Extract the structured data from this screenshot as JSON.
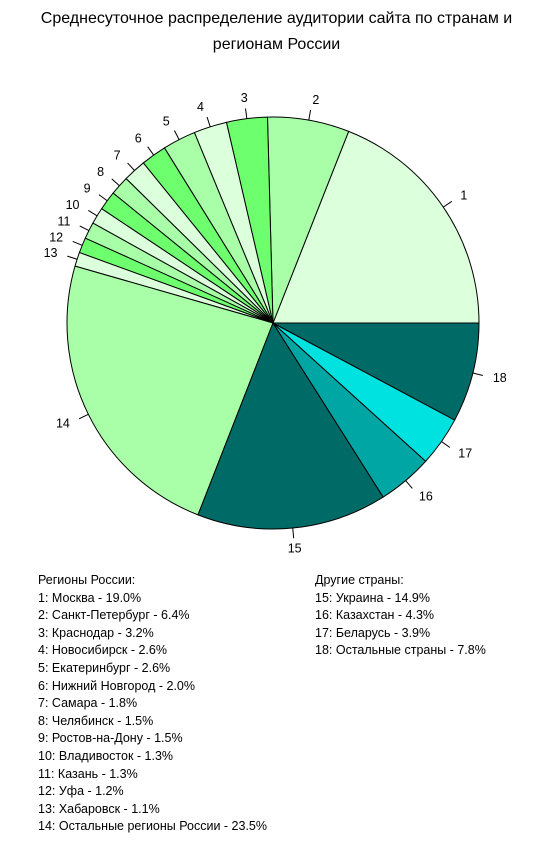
{
  "title": {
    "line1": "Среднесуточное распределение аудитории сайта по странам и",
    "line2": "регионам России"
  },
  "chart_data": {
    "type": "pie",
    "slices": [
      {
        "label": "1",
        "value": 19.0,
        "color": "#dcffdc"
      },
      {
        "label": "2",
        "value": 6.4,
        "color": "#a8ffa8"
      },
      {
        "label": "3",
        "value": 3.2,
        "color": "#6eff6e"
      },
      {
        "label": "4",
        "value": 2.6,
        "color": "#dcffdc"
      },
      {
        "label": "5",
        "value": 2.6,
        "color": "#a8ffa8"
      },
      {
        "label": "6",
        "value": 2.0,
        "color": "#6eff6e"
      },
      {
        "label": "7",
        "value": 1.8,
        "color": "#dcffdc"
      },
      {
        "label": "8",
        "value": 1.5,
        "color": "#a8ffa8"
      },
      {
        "label": "9",
        "value": 1.5,
        "color": "#6eff6e"
      },
      {
        "label": "10",
        "value": 1.3,
        "color": "#dcffdc"
      },
      {
        "label": "11",
        "value": 1.3,
        "color": "#a8ffa8"
      },
      {
        "label": "12",
        "value": 1.2,
        "color": "#6eff6e"
      },
      {
        "label": "13",
        "value": 1.1,
        "color": "#dcffdc"
      },
      {
        "label": "14",
        "value": 23.5,
        "color": "#a8ffa8"
      },
      {
        "label": "15",
        "value": 14.9,
        "color": "#006b66"
      },
      {
        "label": "16",
        "value": 4.3,
        "color": "#00a6a3"
      },
      {
        "label": "17",
        "value": 3.9,
        "color": "#00e2e0"
      },
      {
        "label": "18",
        "value": 7.8,
        "color": "#006b66"
      }
    ]
  },
  "legend_russia": {
    "heading": "Регионы России:",
    "items": [
      "1: Москва - 19.0%",
      "2: Санкт-Петербург - 6.4%",
      "3: Краснодар - 3.2%",
      "4: Новосибирск - 2.6%",
      "5: Екатеринбург - 2.6%",
      "6: Нижний Новгород - 2.0%",
      "7: Самара - 1.8%",
      "8: Челябинск - 1.5%",
      "9: Ростов-на-Дону - 1.5%",
      "10: Владивосток - 1.3%",
      "11: Казань - 1.3%",
      "12: Уфа - 1.2%",
      "13: Хабаровск - 1.1%",
      "14: Остальные регионы России - 23.5%"
    ]
  },
  "legend_other": {
    "heading": "Другие страны:",
    "items": [
      "15: Украина - 14.9%",
      "16: Казахстан - 4.3%",
      "17: Беларусь - 3.9%",
      "18: Остальные страны - 7.8%"
    ]
  }
}
